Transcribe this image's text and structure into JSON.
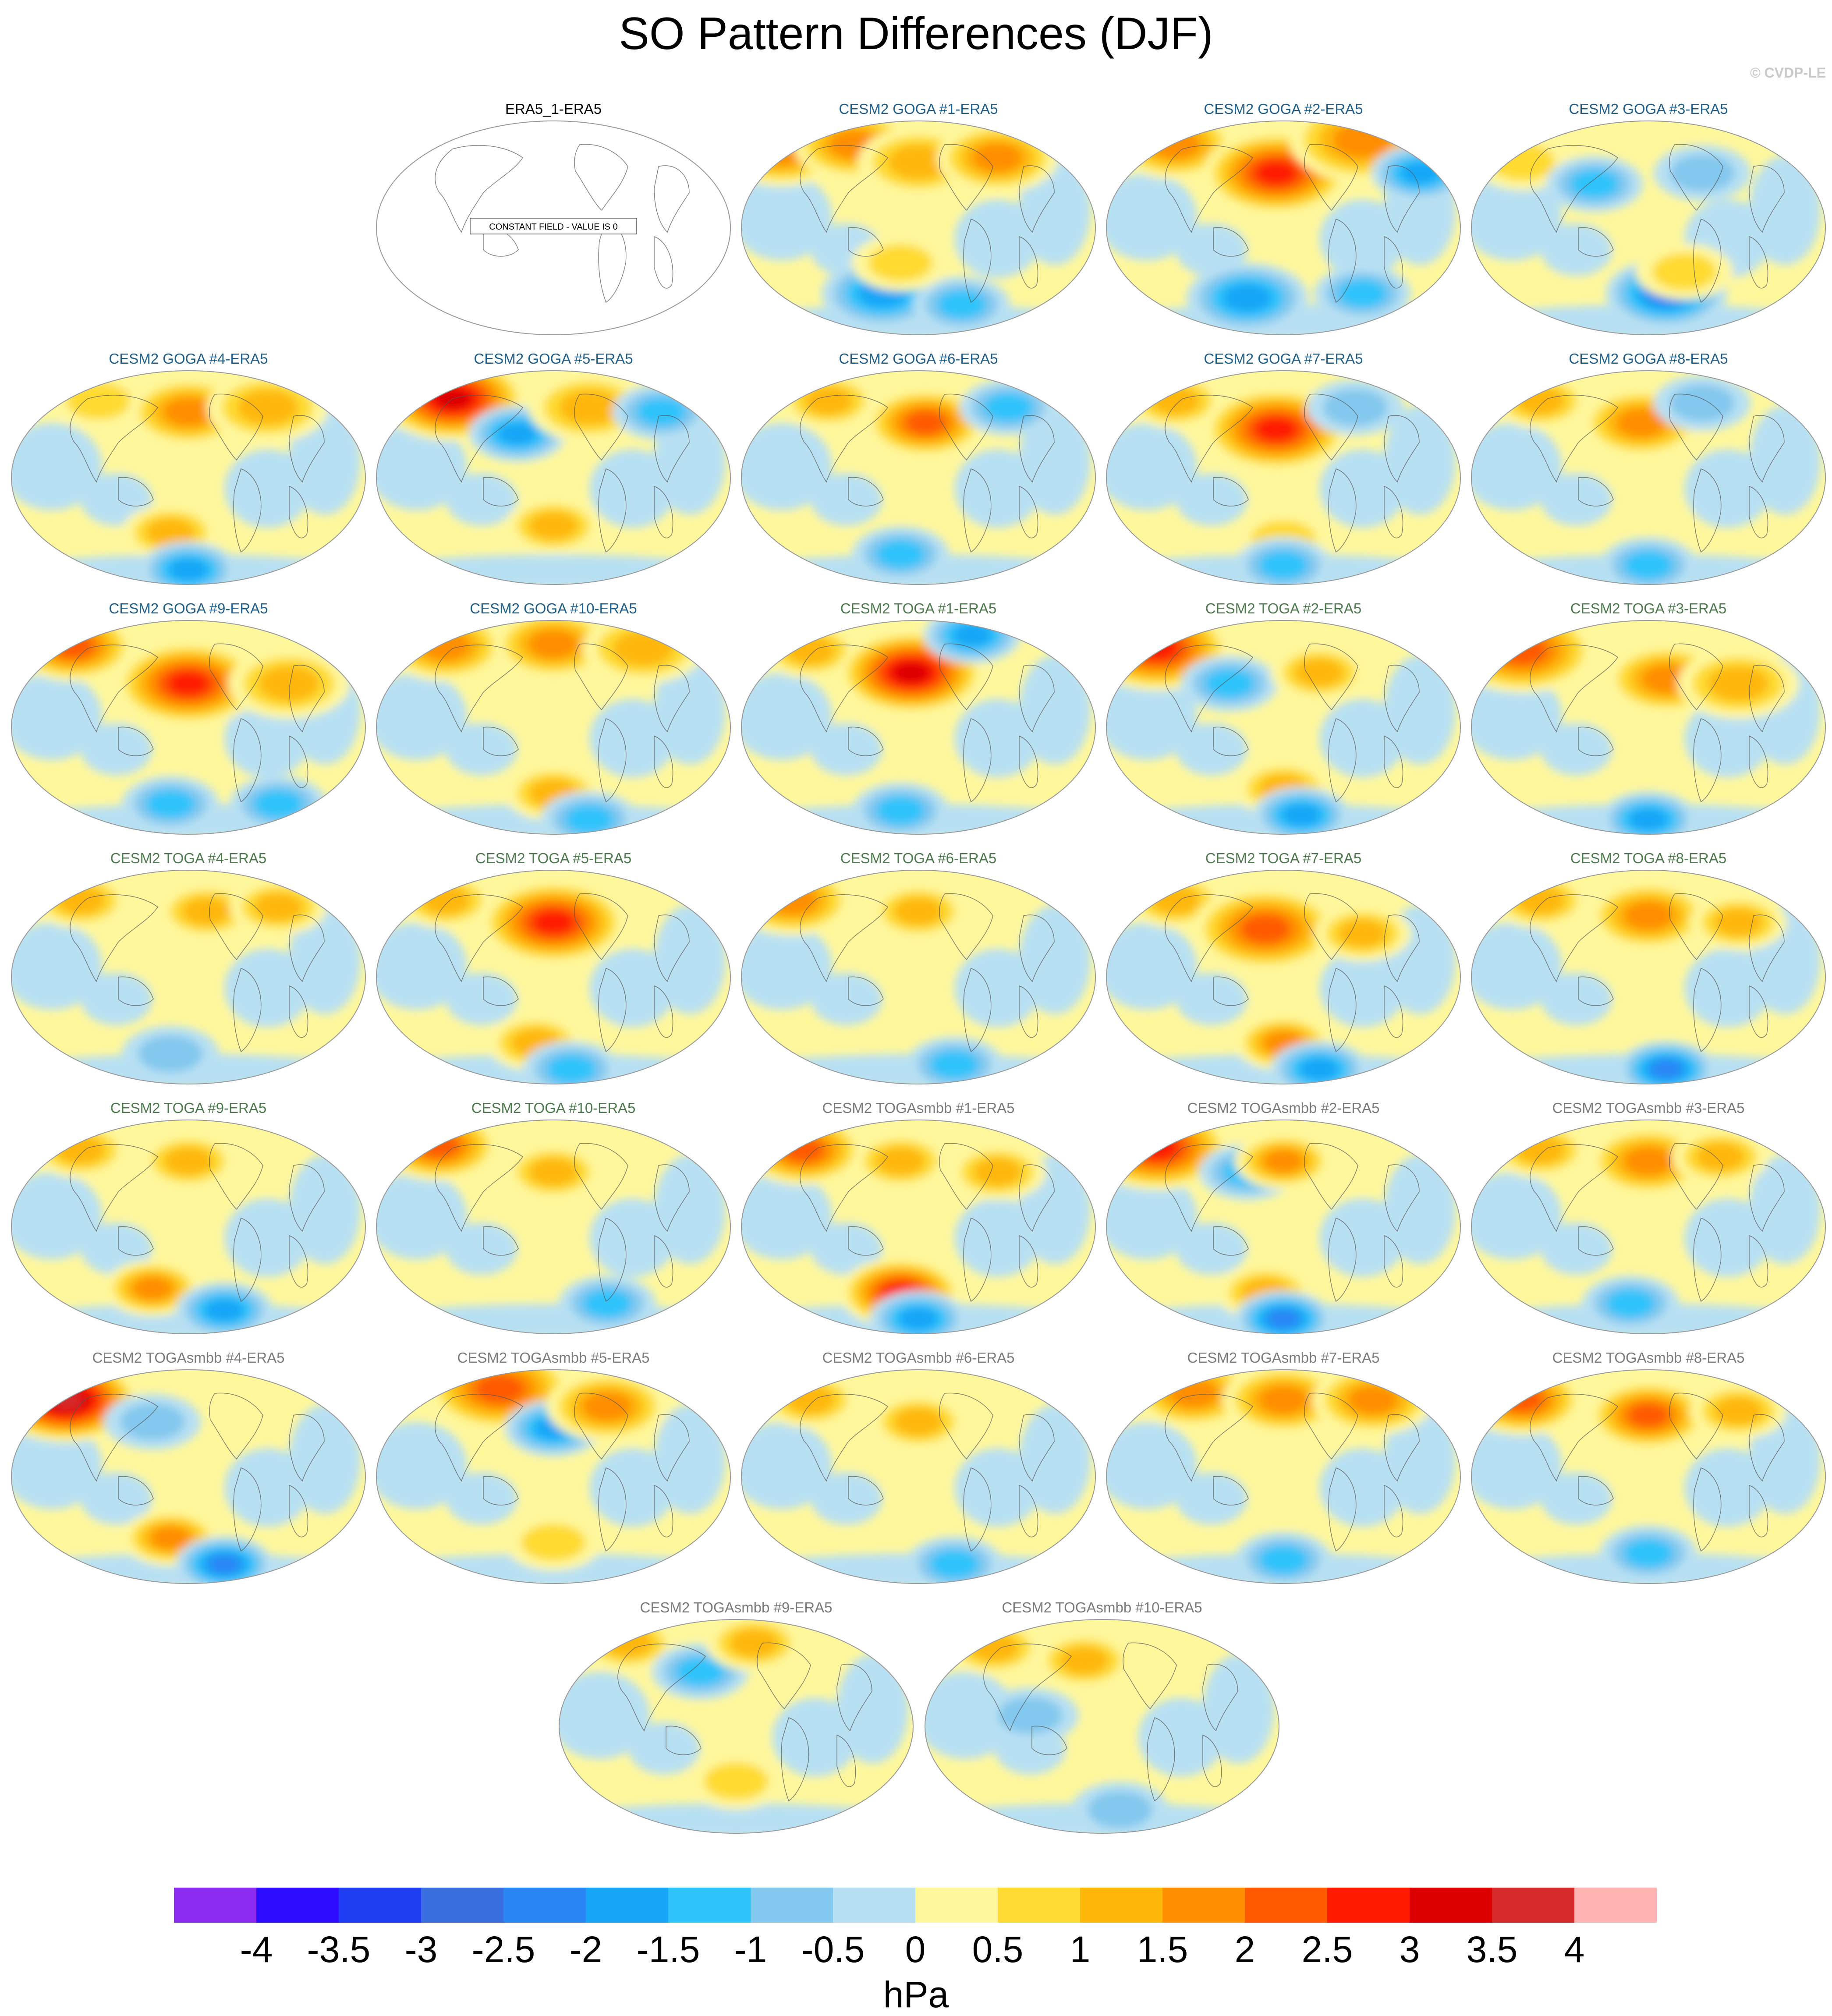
{
  "title": "SO Pattern Differences (DJF)",
  "credit": "© CVDP-LE",
  "chart_data": {
    "type": "heatmap",
    "projection": "robinson-like global map (Pacific-centered)",
    "units": "hPa",
    "colorbar": {
      "levels": [
        -4,
        -3.5,
        -3,
        -2.5,
        -2,
        -1.5,
        -1,
        -0.5,
        0,
        0.5,
        1,
        1.5,
        2,
        2.5,
        3,
        3.5,
        4
      ],
      "colors": [
        "#8b2cf0",
        "#2e0cff",
        "#1f3ef2",
        "#3a6fe0",
        "#2a86f5",
        "#17a6f7",
        "#2fc3fb",
        "#83c8ee",
        "#b8e0f3",
        "#fff79c",
        "#ffdb33",
        "#ffb70a",
        "#ff8e00",
        "#ff5a00",
        "#ff1a00",
        "#dd0000",
        "#d52a2a",
        "#ffb3b3"
      ]
    },
    "title_colors": {
      "GOGA": "#1f5f8c",
      "TOGA": "#4c7a4c",
      "TOGAsmbb": "#7a7a7a",
      "ref": "#000000"
    },
    "panels": [
      {
        "title": "ERA5_1-ERA5",
        "group": "ref",
        "constant": true,
        "note": "CONSTANT FIELD - VALUE IS 0"
      },
      {
        "title": "CESM2 GOGA #1-ERA5",
        "group": "GOGA",
        "blobs": [
          [
            0.12,
            0.15,
            4,
            3
          ],
          [
            0.32,
            0.12,
            4,
            3
          ],
          [
            0.5,
            0.2,
            3,
            3
          ],
          [
            0.72,
            0.18,
            4,
            3
          ],
          [
            0.4,
            0.8,
            -4,
            3
          ],
          [
            0.62,
            0.85,
            -3,
            2
          ],
          [
            0.45,
            0.66,
            2,
            2
          ]
        ]
      },
      {
        "title": "CESM2 GOGA #2-ERA5",
        "group": "GOGA",
        "blobs": [
          [
            0.2,
            0.12,
            4,
            3
          ],
          [
            0.48,
            0.25,
            6,
            4
          ],
          [
            0.72,
            0.1,
            4,
            4
          ],
          [
            0.88,
            0.25,
            -4,
            2
          ],
          [
            0.4,
            0.82,
            -4,
            3
          ],
          [
            0.72,
            0.8,
            -3,
            2
          ]
        ]
      },
      {
        "title": "CESM2 GOGA #3-ERA5",
        "group": "GOGA",
        "blobs": [
          [
            0.15,
            0.2,
            2,
            2
          ],
          [
            0.35,
            0.3,
            -3,
            2
          ],
          [
            0.65,
            0.25,
            -2,
            2
          ],
          [
            0.55,
            0.8,
            -5,
            3
          ],
          [
            0.6,
            0.7,
            2,
            2
          ]
        ]
      },
      {
        "title": "CESM2 GOGA #4-ERA5",
        "group": "GOGA",
        "blobs": [
          [
            0.25,
            0.15,
            2,
            2
          ],
          [
            0.5,
            0.2,
            4,
            3
          ],
          [
            0.72,
            0.18,
            3,
            3
          ],
          [
            0.45,
            0.75,
            3,
            2
          ],
          [
            0.5,
            0.92,
            -4,
            2
          ]
        ]
      },
      {
        "title": "CESM2 GOGA #5-ERA5",
        "group": "GOGA",
        "blobs": [
          [
            0.22,
            0.14,
            7,
            4
          ],
          [
            0.4,
            0.3,
            -4,
            2
          ],
          [
            0.6,
            0.18,
            3,
            3
          ],
          [
            0.8,
            0.2,
            -3,
            2
          ],
          [
            0.5,
            0.72,
            3,
            2
          ]
        ]
      },
      {
        "title": "CESM2 GOGA #6-ERA5",
        "group": "GOGA",
        "blobs": [
          [
            0.25,
            0.15,
            3,
            2
          ],
          [
            0.52,
            0.25,
            5,
            3
          ],
          [
            0.75,
            0.18,
            -3,
            2
          ],
          [
            0.45,
            0.85,
            -3,
            2
          ]
        ]
      },
      {
        "title": "CESM2 GOGA #7-ERA5",
        "group": "GOGA",
        "blobs": [
          [
            0.2,
            0.15,
            3,
            2
          ],
          [
            0.48,
            0.28,
            6,
            4
          ],
          [
            0.7,
            0.18,
            -2,
            2
          ],
          [
            0.5,
            0.78,
            2,
            2
          ],
          [
            0.5,
            0.9,
            -3,
            2
          ]
        ]
      },
      {
        "title": "CESM2 GOGA #8-ERA5",
        "group": "GOGA",
        "blobs": [
          [
            0.2,
            0.15,
            3,
            2
          ],
          [
            0.48,
            0.25,
            4,
            3
          ],
          [
            0.65,
            0.16,
            -2,
            2
          ],
          [
            0.5,
            0.9,
            -3,
            2
          ]
        ]
      },
      {
        "title": "CESM2 GOGA #9-ERA5",
        "group": "GOGA",
        "blobs": [
          [
            0.18,
            0.13,
            5,
            3
          ],
          [
            0.5,
            0.3,
            6,
            4
          ],
          [
            0.78,
            0.3,
            3,
            3
          ],
          [
            0.45,
            0.85,
            -3,
            2
          ],
          [
            0.75,
            0.85,
            -3,
            2
          ]
        ]
      },
      {
        "title": "CESM2 GOGA #10-ERA5",
        "group": "GOGA",
        "blobs": [
          [
            0.2,
            0.13,
            4,
            3
          ],
          [
            0.5,
            0.12,
            4,
            3
          ],
          [
            0.75,
            0.14,
            3,
            3
          ],
          [
            0.5,
            0.8,
            3,
            2
          ],
          [
            0.6,
            0.92,
            -3,
            2
          ]
        ]
      },
      {
        "title": "CESM2 TOGA #1-ERA5",
        "group": "TOGA",
        "blobs": [
          [
            0.2,
            0.15,
            3,
            2
          ],
          [
            0.48,
            0.25,
            7,
            4
          ],
          [
            0.65,
            0.08,
            -4,
            2
          ],
          [
            0.45,
            0.88,
            -3,
            2
          ]
        ]
      },
      {
        "title": "CESM2 TOGA #2-ERA5",
        "group": "TOGA",
        "blobs": [
          [
            0.15,
            0.14,
            6,
            4
          ],
          [
            0.35,
            0.3,
            -3,
            2
          ],
          [
            0.6,
            0.25,
            3,
            2
          ],
          [
            0.5,
            0.78,
            3,
            2
          ],
          [
            0.55,
            0.9,
            -4,
            2
          ]
        ]
      },
      {
        "title": "CESM2 TOGA #3-ERA5",
        "group": "TOGA",
        "blobs": [
          [
            0.15,
            0.15,
            5,
            4
          ],
          [
            0.55,
            0.28,
            4,
            3
          ],
          [
            0.75,
            0.3,
            3,
            3
          ],
          [
            0.5,
            0.92,
            -4,
            2
          ]
        ]
      },
      {
        "title": "CESM2 TOGA #4-ERA5",
        "group": "TOGA",
        "blobs": [
          [
            0.2,
            0.15,
            3,
            2
          ],
          [
            0.55,
            0.2,
            3,
            2
          ],
          [
            0.75,
            0.18,
            3,
            2
          ],
          [
            0.45,
            0.85,
            -2,
            2
          ]
        ]
      },
      {
        "title": "CESM2 TOGA #5-ERA5",
        "group": "TOGA",
        "blobs": [
          [
            0.2,
            0.15,
            3,
            2
          ],
          [
            0.5,
            0.25,
            6,
            4
          ],
          [
            0.45,
            0.8,
            3,
            2
          ],
          [
            0.55,
            0.92,
            -3,
            2
          ]
        ]
      },
      {
        "title": "CESM2 TOGA #6-ERA5",
        "group": "TOGA",
        "blobs": [
          [
            0.15,
            0.15,
            4,
            3
          ],
          [
            0.5,
            0.2,
            3,
            2
          ],
          [
            0.6,
            0.9,
            -3,
            2
          ]
        ]
      },
      {
        "title": "CESM2 TOGA #7-ERA5",
        "group": "TOGA",
        "blobs": [
          [
            0.2,
            0.15,
            3,
            2
          ],
          [
            0.45,
            0.28,
            5,
            4
          ],
          [
            0.72,
            0.3,
            3,
            2
          ],
          [
            0.5,
            0.8,
            4,
            2
          ],
          [
            0.6,
            0.92,
            -4,
            2
          ]
        ]
      },
      {
        "title": "CESM2 TOGA #8-ERA5",
        "group": "TOGA",
        "blobs": [
          [
            0.2,
            0.15,
            3,
            2
          ],
          [
            0.5,
            0.22,
            4,
            3
          ],
          [
            0.75,
            0.25,
            3,
            2
          ],
          [
            0.55,
            0.92,
            -5,
            2
          ]
        ]
      },
      {
        "title": "CESM2 TOGA #9-ERA5",
        "group": "TOGA",
        "blobs": [
          [
            0.2,
            0.15,
            3,
            2
          ],
          [
            0.5,
            0.2,
            3,
            2
          ],
          [
            0.4,
            0.78,
            4,
            2
          ],
          [
            0.6,
            0.88,
            -4,
            2
          ]
        ]
      },
      {
        "title": "CESM2 TOGA #10-ERA5",
        "group": "TOGA",
        "blobs": [
          [
            0.18,
            0.13,
            5,
            3
          ],
          [
            0.5,
            0.25,
            3,
            2
          ],
          [
            0.65,
            0.85,
            -3,
            2
          ]
        ]
      },
      {
        "title": "CESM2 TOGAsmbb #1-ERA5",
        "group": "TOGAsmbb",
        "blobs": [
          [
            0.18,
            0.15,
            5,
            3
          ],
          [
            0.45,
            0.2,
            3,
            2
          ],
          [
            0.72,
            0.25,
            3,
            2
          ],
          [
            0.45,
            0.8,
            6,
            3
          ],
          [
            0.5,
            0.92,
            -4,
            2
          ]
        ]
      },
      {
        "title": "CESM2 TOGAsmbb #2-ERA5",
        "group": "TOGAsmbb",
        "blobs": [
          [
            0.15,
            0.14,
            6,
            4
          ],
          [
            0.4,
            0.25,
            -3,
            2
          ],
          [
            0.5,
            0.2,
            4,
            2
          ],
          [
            0.45,
            0.8,
            3,
            2
          ],
          [
            0.5,
            0.92,
            -5,
            2
          ]
        ]
      },
      {
        "title": "CESM2 TOGAsmbb #3-ERA5",
        "group": "TOGAsmbb",
        "blobs": [
          [
            0.2,
            0.15,
            3,
            2
          ],
          [
            0.5,
            0.2,
            4,
            3
          ],
          [
            0.7,
            0.18,
            3,
            2
          ],
          [
            0.45,
            0.85,
            -3,
            2
          ]
        ]
      },
      {
        "title": "CESM2 TOGAsmbb #4-ERA5",
        "group": "TOGAsmbb",
        "blobs": [
          [
            0.16,
            0.15,
            8,
            4
          ],
          [
            0.4,
            0.25,
            -2,
            2
          ],
          [
            0.45,
            0.78,
            4,
            2
          ],
          [
            0.6,
            0.9,
            -5,
            2
          ]
        ]
      },
      {
        "title": "CESM2 TOGAsmbb #5-ERA5",
        "group": "TOGAsmbb",
        "blobs": [
          [
            0.35,
            0.1,
            5,
            4
          ],
          [
            0.5,
            0.28,
            -4,
            2
          ],
          [
            0.65,
            0.18,
            4,
            3
          ],
          [
            0.5,
            0.8,
            2,
            2
          ]
        ]
      },
      {
        "title": "CESM2 TOGAsmbb #6-ERA5",
        "group": "TOGAsmbb",
        "blobs": [
          [
            0.2,
            0.15,
            3,
            2
          ],
          [
            0.5,
            0.25,
            3,
            2
          ],
          [
            0.6,
            0.9,
            -3,
            2
          ]
        ]
      },
      {
        "title": "CESM2 TOGAsmbb #7-ERA5",
        "group": "TOGAsmbb",
        "blobs": [
          [
            0.25,
            0.12,
            4,
            3
          ],
          [
            0.5,
            0.15,
            4,
            3
          ],
          [
            0.75,
            0.15,
            4,
            3
          ],
          [
            0.5,
            0.88,
            -3,
            2
          ]
        ]
      },
      {
        "title": "CESM2 TOGAsmbb #8-ERA5",
        "group": "TOGAsmbb",
        "blobs": [
          [
            0.15,
            0.15,
            5,
            3
          ],
          [
            0.5,
            0.22,
            5,
            3
          ],
          [
            0.75,
            0.2,
            3,
            2
          ],
          [
            0.5,
            0.85,
            -3,
            2
          ]
        ]
      },
      {
        "title": "CESM2 TOGAsmbb #9-ERA5",
        "group": "TOGAsmbb",
        "blobs": [
          [
            0.2,
            0.12,
            3,
            2
          ],
          [
            0.4,
            0.25,
            -3,
            2
          ],
          [
            0.55,
            0.12,
            3,
            2
          ],
          [
            0.5,
            0.75,
            2,
            2
          ]
        ]
      },
      {
        "title": "CESM2 TOGAsmbb #10-ERA5",
        "group": "TOGAsmbb",
        "blobs": [
          [
            0.2,
            0.14,
            3,
            2
          ],
          [
            0.45,
            0.2,
            3,
            2
          ],
          [
            0.3,
            0.45,
            -2,
            2
          ],
          [
            0.55,
            0.88,
            -2,
            2
          ]
        ]
      }
    ]
  }
}
